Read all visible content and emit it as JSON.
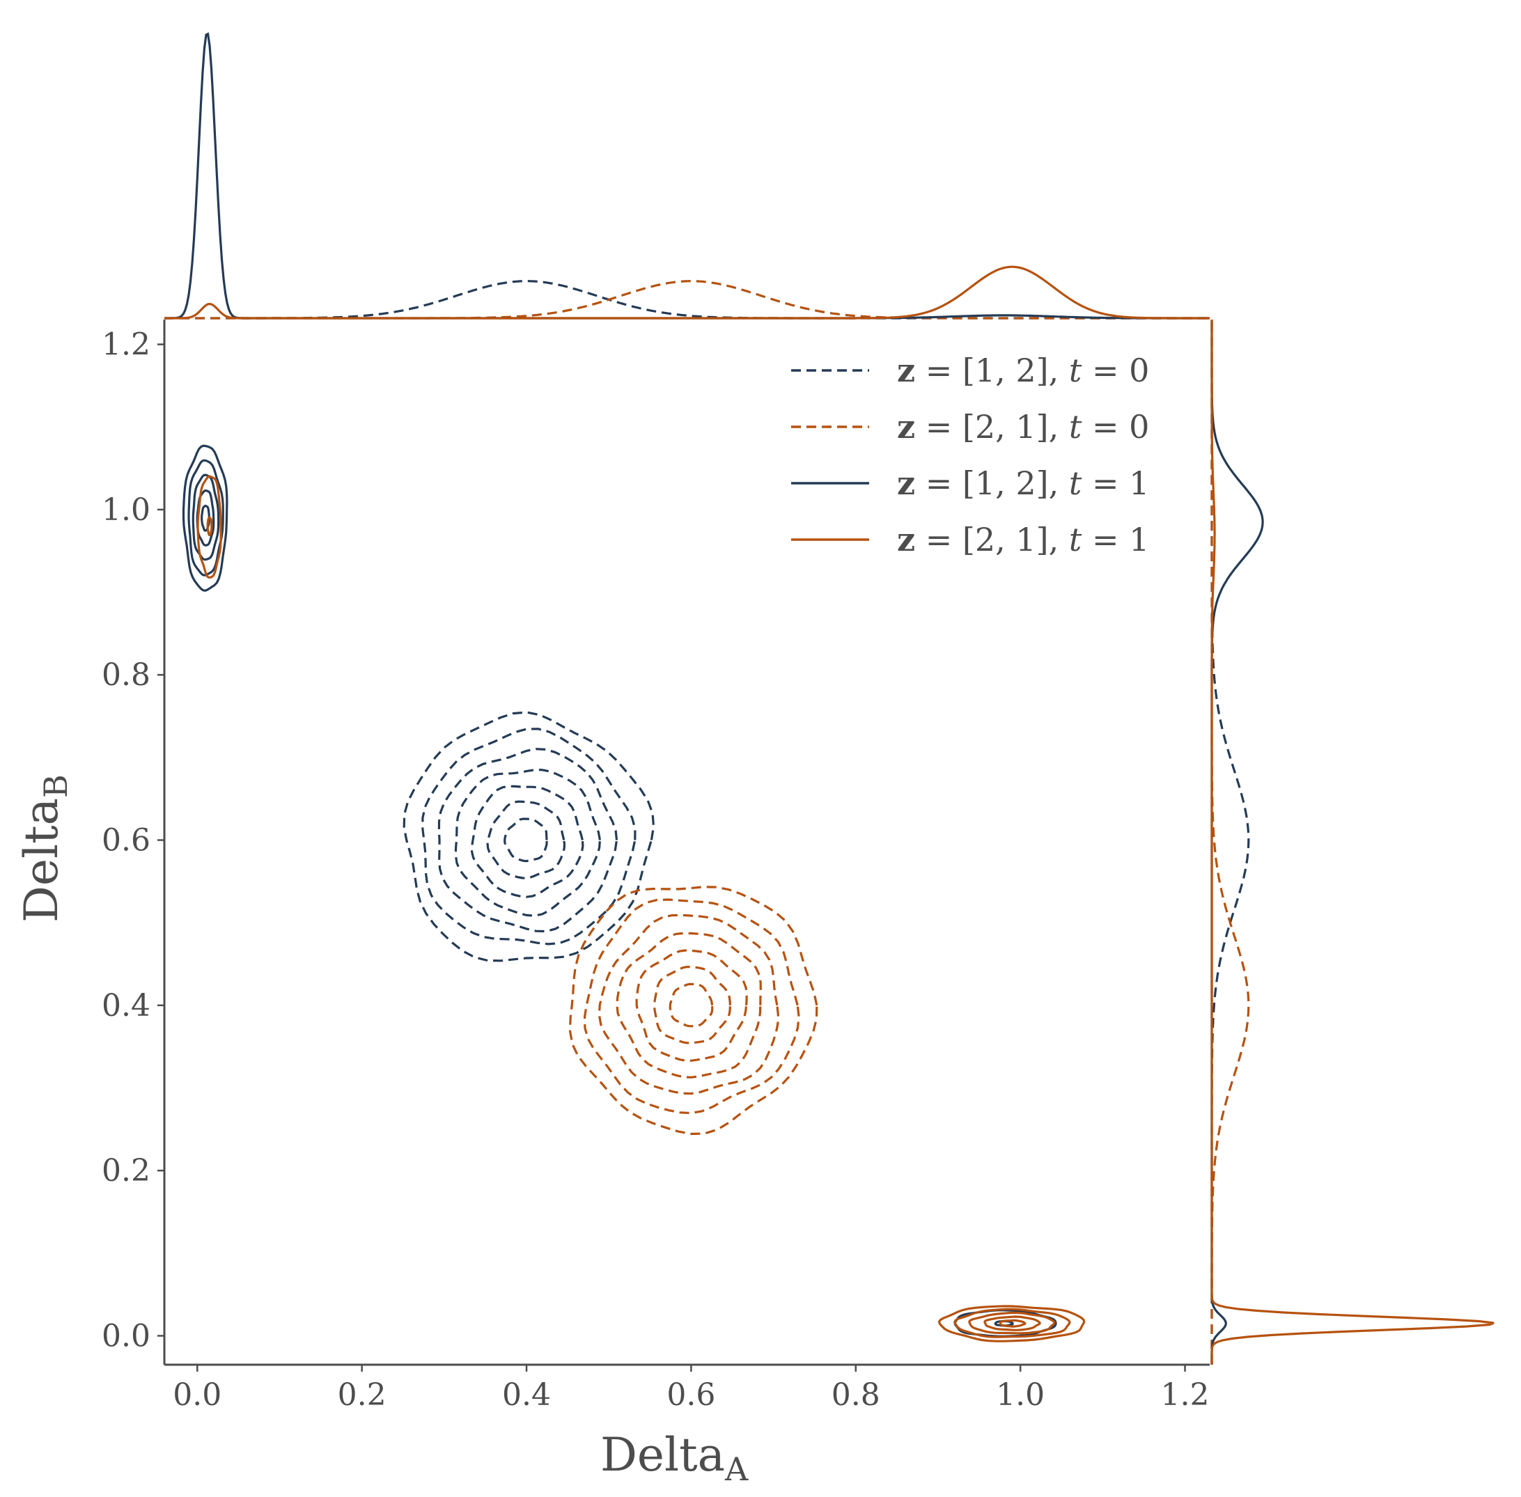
{
  "chart_data": {
    "type": "contour",
    "xlabel": "Delta",
    "xlabel_sub": "A",
    "ylabel": "Delta",
    "ylabel_sub": "B",
    "xlim": [
      -0.04,
      1.23
    ],
    "ylim": [
      -0.035,
      1.23
    ],
    "xticks": [
      "0.0",
      "0.2",
      "0.4",
      "0.6",
      "0.8",
      "1.0",
      "1.2"
    ],
    "yticks": [
      "0.0",
      "0.2",
      "0.4",
      "0.6",
      "0.8",
      "1.0",
      "1.2"
    ],
    "legend_position": "top-right",
    "series": [
      {
        "name": "z = [1, 2], t = 0",
        "label_z": "z",
        "label_vec": "[1, 2]",
        "label_t": "t",
        "label_tval": "0",
        "color": "#243b56",
        "linestyle": "dashed",
        "center": [
          0.4,
          0.6
        ],
        "sigma": [
          0.085,
          0.085
        ],
        "contour_levels": 7,
        "marginal_x": {
          "mean": 0.4,
          "sd": 0.085,
          "peak": 0.13
        },
        "marginal_y": {
          "mean": 0.6,
          "sd": 0.085,
          "peak": 0.13
        }
      },
      {
        "name": "z = [2, 1], t = 0",
        "label_z": "z",
        "label_vec": "[2, 1]",
        "label_t": "t",
        "label_tval": "0",
        "color": "#b6520f",
        "linestyle": "dashed",
        "center": [
          0.6,
          0.4
        ],
        "sigma": [
          0.085,
          0.085
        ],
        "contour_levels": 7,
        "marginal_x": {
          "mean": 0.6,
          "sd": 0.085,
          "peak": 0.13
        },
        "marginal_y": {
          "mean": 0.4,
          "sd": 0.085,
          "peak": 0.13
        }
      },
      {
        "name": "z = [1, 2], t = 1",
        "label_z": "z",
        "label_vec": "[1, 2]",
        "label_t": "t",
        "label_tval": "1",
        "color": "#243b56",
        "linestyle": "solid",
        "clusters": [
          {
            "center": [
              0.01,
              0.99
            ],
            "sigma": [
              0.015,
              0.05
            ],
            "contour_levels": 5
          },
          {
            "center": [
              0.98,
              0.015
            ],
            "sigma": [
              0.035,
              0.009
            ],
            "contour_levels": 2
          }
        ],
        "marginal_x": {
          "components": [
            {
              "mean": 0.012,
              "sd": 0.01,
              "peak": 1.0
            },
            {
              "mean": 0.98,
              "sd": 0.06,
              "peak": 0.01
            }
          ]
        },
        "marginal_y": {
          "components": [
            {
              "mean": 0.985,
              "sd": 0.045,
              "peak": 0.18
            },
            {
              "mean": 0.015,
              "sd": 0.01,
              "peak": 0.05
            }
          ]
        }
      },
      {
        "name": "z = [2, 1], t = 1",
        "label_z": "z",
        "label_vec": "[2, 1]",
        "label_t": "t",
        "label_tval": "1",
        "color": "#b6520f",
        "linestyle": "solid",
        "clusters": [
          {
            "center": [
              0.015,
              0.98
            ],
            "sigma": [
              0.008,
              0.035
            ],
            "contour_levels": 2
          },
          {
            "center": [
              0.99,
              0.015
            ],
            "sigma": [
              0.05,
              0.012
            ],
            "contour_levels": 5
          }
        ],
        "marginal_x": {
          "components": [
            {
              "mean": 0.015,
              "sd": 0.01,
              "peak": 0.05
            },
            {
              "mean": 0.99,
              "sd": 0.05,
              "peak": 0.18
            }
          ]
        },
        "marginal_y": {
          "components": [
            {
              "mean": 0.015,
              "sd": 0.008,
              "peak": 1.0
            },
            {
              "mean": 0.97,
              "sd": 0.05,
              "peak": 0.01
            }
          ]
        }
      }
    ]
  }
}
